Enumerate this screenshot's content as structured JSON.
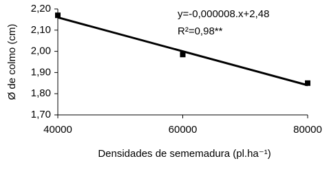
{
  "chart_data": {
    "type": "scatter",
    "y_label": "Ø de colmo (cm)",
    "x_label": "Densidades de sememadura (pl.ha⁻¹)",
    "annotations": [
      "y=-0,000008.x+2,48",
      "R²=0,98**"
    ],
    "x": [
      40000,
      60000,
      80000
    ],
    "values": [
      2.17,
      1.985,
      1.85
    ],
    "color": "#000000",
    "fit": {
      "x": [
        40000,
        80000
      ],
      "values": [
        2.16,
        1.84
      ]
    },
    "xlim": [
      40000,
      80000
    ],
    "xticks": [
      40000,
      60000,
      80000
    ],
    "ylim": [
      1.7,
      2.2
    ],
    "yticks": [
      {
        "value": 1.7,
        "label": "1,70"
      },
      {
        "value": 1.8,
        "label": "1,80"
      },
      {
        "value": 1.9,
        "label": "1,90"
      },
      {
        "value": 2.0,
        "label": "2,00"
      },
      {
        "value": 2.1,
        "label": "2,10"
      },
      {
        "value": 2.2,
        "label": "2,20"
      }
    ]
  }
}
